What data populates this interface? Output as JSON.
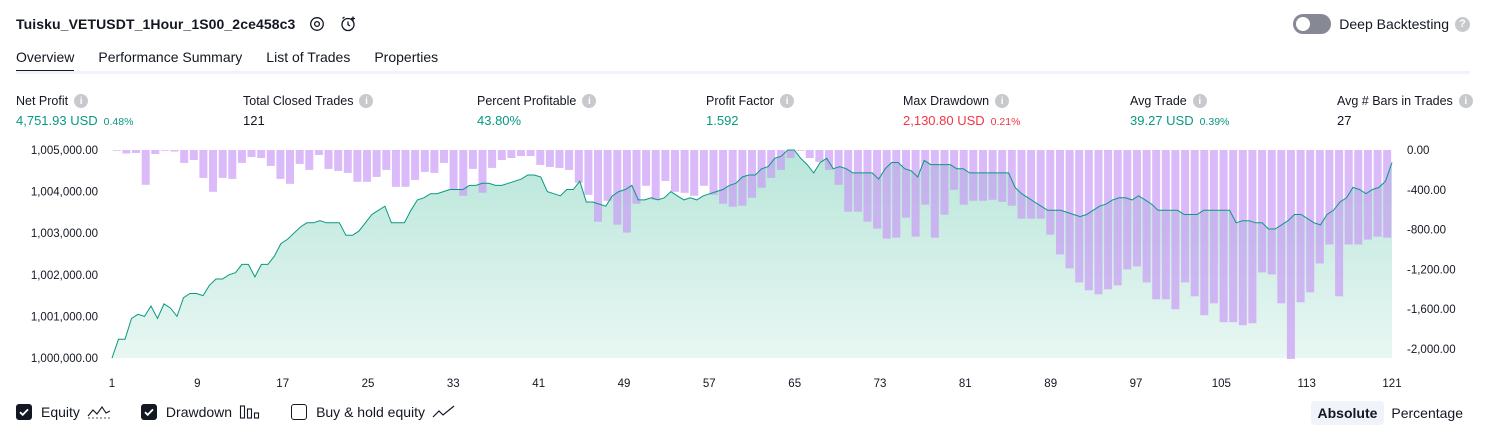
{
  "strategy": {
    "title": "Tuisku_VETUSDT_1Hour_1S00_2ce458c3",
    "icons": [
      "settings-icon",
      "add-alert-icon"
    ]
  },
  "deep_backtesting": {
    "label": "Deep Backtesting",
    "enabled": false,
    "help_icon": "question-icon"
  },
  "tabs": [
    {
      "label": "Overview",
      "active": true
    },
    {
      "label": "Performance Summary",
      "active": false
    },
    {
      "label": "List of Trades",
      "active": false
    },
    {
      "label": "Properties",
      "active": false
    }
  ],
  "metrics": [
    {
      "label": "Net Profit",
      "value": "4,751.93 USD",
      "pct": "0.48%",
      "color": "#089981"
    },
    {
      "label": "Total Closed Trades",
      "value": "121",
      "pct": "",
      "color": "#131722"
    },
    {
      "label": "Percent Profitable",
      "value": "43.80%",
      "pct": "",
      "color": "#089981"
    },
    {
      "label": "Profit Factor",
      "value": "1.592",
      "pct": "",
      "color": "#089981"
    },
    {
      "label": "Max Drawdown",
      "value": "2,130.80 USD",
      "pct": "0.21%",
      "color": "#f23645"
    },
    {
      "label": "Avg Trade",
      "value": "39.27 USD",
      "pct": "0.39%",
      "color": "#089981"
    },
    {
      "label": "Avg # Bars in Trades",
      "value": "27",
      "pct": "",
      "color": "#131722"
    }
  ],
  "chart_data": {
    "type": "area",
    "left_axis": {
      "ylim": [
        1000000,
        1005000
      ],
      "ticks": [
        "1,000,000.00",
        "1,001,000.00",
        "1,002,000.00",
        "1,003,000.00",
        "1,004,000.00",
        "1,005,000.00"
      ]
    },
    "right_axis": {
      "ylim": [
        -2100,
        0
      ],
      "ticks": [
        "0.00",
        "-400.00",
        "-800.00",
        "-1,200.00",
        "-1,600.00",
        "-2,000.00"
      ]
    },
    "x_ticks": [
      "1",
      "9",
      "17",
      "25",
      "33",
      "41",
      "49",
      "57",
      "65",
      "73",
      "81",
      "89",
      "97",
      "105",
      "113",
      "121"
    ],
    "series": [
      {
        "name": "Equity",
        "color": "#089981",
        "values": [
          1000000,
          1000450,
          1000450,
          1000950,
          1001050,
          1001000,
          1001250,
          1000950,
          1001300,
          1001200,
          1001000,
          1001450,
          1001550,
          1001550,
          1001500,
          1001750,
          1001900,
          1001900,
          1002000,
          1002050,
          1002250,
          1002250,
          1001950,
          1002250,
          1002250,
          1002450,
          1002750,
          1002850,
          1003000,
          1003150,
          1003250,
          1003250,
          1003300,
          1003250,
          1003250,
          1003250,
          1002950,
          1002950,
          1003050,
          1003250,
          1003450,
          1003550,
          1003650,
          1003250,
          1003250,
          1003250,
          1003550,
          1003800,
          1003850,
          1003950,
          1003950,
          1004000,
          1004050,
          1004050,
          1004050,
          1004150,
          1004150,
          1004200,
          1004200,
          1004150,
          1004150,
          1004200,
          1004250,
          1004300,
          1004400,
          1004400,
          1004350,
          1004000,
          1003950,
          1003900,
          1004050,
          1004050,
          1004250,
          1003750,
          1003750,
          1003700,
          1003650,
          1003900,
          1004000,
          1004050,
          1004150,
          1003800,
          1003800,
          1003850,
          1003800,
          1003850,
          1004000,
          1003900,
          1003800,
          1003850,
          1003800,
          1003900,
          1003950,
          1004000,
          1004050,
          1004150,
          1004200,
          1004350,
          1004400,
          1004400,
          1004550,
          1004600,
          1004800,
          1004850,
          1005000,
          1005000,
          1004800,
          1004650,
          1004450,
          1004700,
          1004800,
          1004550,
          1004600,
          1004550,
          1004450,
          1004450,
          1004450,
          1004450,
          1004300,
          1004550,
          1004700,
          1004700,
          1004550,
          1004500,
          1004350,
          1004750,
          1004650,
          1004650,
          1004650,
          1004650,
          1004550,
          1004550,
          1004450,
          1004450,
          1004450,
          1004450,
          1004450,
          1004450,
          1004450,
          1004100,
          1003950,
          1003850,
          1003750,
          1003650,
          1003550,
          1003550,
          1003550,
          1003500,
          1003450,
          1003400,
          1003450,
          1003550,
          1003650,
          1003700,
          1003800,
          1003850,
          1003850,
          1003800,
          1003900,
          1003800,
          1003700,
          1003550,
          1003550,
          1003550,
          1003550,
          1003450,
          1003450,
          1003450,
          1003550,
          1003550,
          1003550,
          1003550,
          1003550,
          1003250,
          1003300,
          1003300,
          1003250,
          1003250,
          1003100,
          1003100,
          1003200,
          1003300,
          1003450,
          1003450,
          1003350,
          1003250,
          1003200,
          1003450,
          1003550,
          1003750,
          1003850,
          1004100,
          1004050,
          1003950,
          1004050,
          1004100,
          1004250,
          1004700
        ]
      },
      {
        "name": "Drawdown",
        "color": "#c89af5",
        "values": [
          0,
          -35,
          -30,
          -350,
          -40,
          -5,
          -15,
          -130,
          -100,
          -280,
          -420,
          -280,
          -290,
          -130,
          -70,
          -80,
          -160,
          -290,
          -340,
          -140,
          -200,
          -50,
          -190,
          -210,
          -230,
          -320,
          -320,
          -270,
          -200,
          -370,
          -370,
          -300,
          -220,
          -230,
          -130,
          -400,
          -460,
          -190,
          -430,
          -180,
          -100,
          -80,
          -60,
          -60,
          -150,
          -170,
          -180,
          -200,
          -330,
          -450,
          -720,
          -510,
          -750,
          -830,
          -540,
          -360,
          -500,
          -310,
          -420,
          -430,
          -460,
          -360,
          -450,
          -540,
          -570,
          -560,
          -480,
          -380,
          -280,
          -200,
          -80,
          0,
          -80,
          -120,
          -200,
          -350,
          -620,
          -620,
          -720,
          -790,
          -890,
          -880,
          -680,
          -870,
          -550,
          -880,
          -650,
          -400,
          -550,
          -510,
          -510,
          -500,
          -520,
          -560,
          -690,
          -690,
          -690,
          -850,
          -1050,
          -1190,
          -1330,
          -1410,
          -1450,
          -1400,
          -1360,
          -1200,
          -1170,
          -1330,
          -1500,
          -1500,
          -1600,
          -1330,
          -1470,
          -1660,
          -1540,
          -1730,
          -1730,
          -1760,
          -1740,
          -1230,
          -1250,
          -1540,
          -2100,
          -1530,
          -1430,
          -1140,
          -950,
          -1470,
          -950,
          -950,
          -900,
          -870,
          -880
        ]
      }
    ],
    "area_fill": "#d5f0ea",
    "grid": false
  },
  "legend": [
    {
      "label": "Equity",
      "checked": true,
      "icon": "equity-line-icon"
    },
    {
      "label": "Drawdown",
      "checked": true,
      "icon": "drawdown-bars-icon"
    },
    {
      "label": "Buy & hold equity",
      "checked": false,
      "icon": "buy-hold-line-icon"
    }
  ],
  "modes": [
    {
      "label": "Absolute",
      "active": true
    },
    {
      "label": "Percentage",
      "active": false
    }
  ]
}
